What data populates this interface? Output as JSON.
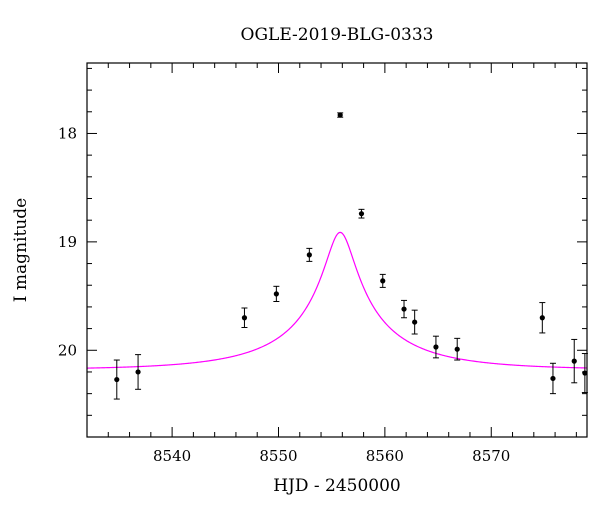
{
  "chart_data": {
    "type": "scatter",
    "title": "OGLE-2019-BLG-0333",
    "xlabel": "HJD - 2450000",
    "ylabel": "I magnitude",
    "xlim": [
      8532,
      8579
    ],
    "ylim": [
      20.8,
      17.35
    ],
    "y_inverted": true,
    "x_major_ticks": [
      8540,
      8550,
      8560,
      8570
    ],
    "x_minor_step": 2,
    "y_major_ticks": [
      18,
      19,
      20
    ],
    "y_minor_step": 0.2,
    "x_tick_labels": [
      "8540",
      "8550",
      "8560",
      "8570"
    ],
    "y_tick_labels": [
      "18",
      "19",
      "20"
    ],
    "model_color": "#ff00ff",
    "point_color": "#000000",
    "model": {
      "type": "point-lens",
      "t0": 8555.8,
      "tE": 11,
      "u0": 0.12,
      "baseline_mag": 20.18,
      "blend_fraction": 0.3
    },
    "series": [
      {
        "x": [
          8534.8,
          8536.8,
          8546.8,
          8549.8,
          8552.9,
          8555.8,
          8557.8,
          8559.8,
          8561.8,
          8562.8,
          8564.8,
          8566.8,
          8574.8,
          8575.8,
          8577.8,
          8578.8
        ],
        "y": [
          20.27,
          20.2,
          19.7,
          19.48,
          19.12,
          17.83,
          18.74,
          19.36,
          19.62,
          19.74,
          19.97,
          19.99,
          19.7,
          20.26,
          20.1,
          20.21
        ],
        "yerr": [
          0.18,
          0.16,
          0.09,
          0.07,
          0.06,
          0.02,
          0.04,
          0.06,
          0.08,
          0.11,
          0.1,
          0.1,
          0.14,
          0.14,
          0.2,
          0.18
        ]
      }
    ]
  }
}
